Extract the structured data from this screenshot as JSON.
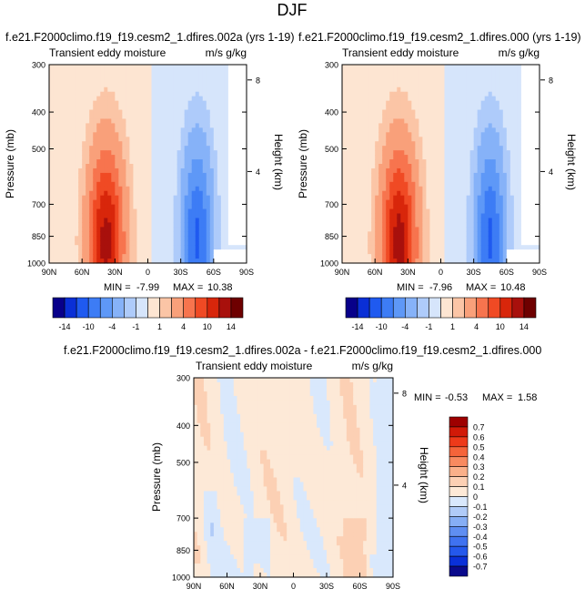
{
  "page_title": "DJF",
  "colors": {
    "palette": [
      "#08008a",
      "#0a2fd6",
      "#1f5af0",
      "#3d7cf5",
      "#5e98f7",
      "#86b2f8",
      "#aecbfa",
      "#d6e5fb",
      "#fde5d2",
      "#fbc5a6",
      "#f9a07a",
      "#f7744e",
      "#f04a24",
      "#d8260b",
      "#a8100c",
      "#6e0000"
    ],
    "diff_palette": [
      "#0a0a8c",
      "#0a30d8",
      "#2458ec",
      "#3f72f0",
      "#5f8ef2",
      "#86aef5",
      "#b0cbf8",
      "#d9e8fc",
      "#fde9d7",
      "#fcd0b4",
      "#fab08a",
      "#f88a60",
      "#f5643a",
      "#ee3a1a",
      "#d11a08",
      "#9e0000"
    ]
  },
  "chart_data": [
    {
      "type": "heatmap",
      "title": "f.e21.F2000climo.f19_f19.cesm2_1.dfires.002a (yrs 1-19)",
      "subtitle_left": "Transient eddy moisture",
      "subtitle_right": "m/s g/kg",
      "ylabel": "Pressure (mb)",
      "ylabel_right": "Height (km)",
      "x_ticks": [
        "90N",
        "60N",
        "30N",
        "0",
        "30S",
        "60S",
        "90S"
      ],
      "y_ticks": [
        "300",
        "400",
        "500",
        "700",
        "850",
        "1000"
      ],
      "height_ticks": [
        "8",
        "4"
      ],
      "stats": {
        "min_label": "MIN =",
        "min": "-7.99",
        "max_label": "MAX =",
        "max": "10.38"
      },
      "colorbar_labels": [
        "-14",
        "-10",
        "-4",
        "-1",
        "1",
        "4",
        "10",
        "14"
      ],
      "blobs": [
        {
          "lat": 38,
          "p": 880,
          "value": 10.38
        },
        {
          "lat": -45,
          "p": 860,
          "value": -7.99
        }
      ]
    },
    {
      "type": "heatmap",
      "title": "f.e21.F2000climo.f19_f19.cesm2_1.dfires.000 (yrs 1-19)",
      "subtitle_left": "Transient eddy moisture",
      "subtitle_right": "m/s g/kg",
      "ylabel": "Pressure (mb)",
      "ylabel_right": "Height (km)",
      "x_ticks": [
        "90N",
        "60N",
        "30N",
        "0",
        "30S",
        "60S",
        "90S"
      ],
      "y_ticks": [
        "300",
        "400",
        "500",
        "700",
        "850",
        "1000"
      ],
      "height_ticks": [
        "8",
        "4"
      ],
      "stats": {
        "min_label": "MIN =",
        "min": "-7.96",
        "max_label": "MAX =",
        "max": "10.48"
      },
      "colorbar_labels": [
        "-14",
        "-10",
        "-4",
        "-1",
        "1",
        "4",
        "10",
        "14"
      ],
      "blobs": [
        {
          "lat": 38,
          "p": 880,
          "value": 10.48
        },
        {
          "lat": -45,
          "p": 860,
          "value": -7.96
        }
      ]
    },
    {
      "type": "heatmap",
      "title": "f.e21.F2000climo.f19_f19.cesm2_1.dfires.002a - f.e21.F2000climo.f19_f19.cesm2_1.dfires.000",
      "subtitle_left": "Transient eddy moisture",
      "subtitle_right": "m/s g/kg",
      "ylabel": "Pressure (mb)",
      "ylabel_right": "Height (km)",
      "x_ticks": [
        "90N",
        "60N",
        "30N",
        "0",
        "30S",
        "60S",
        "90S"
      ],
      "y_ticks": [
        "300",
        "400",
        "500",
        "700",
        "850",
        "1000"
      ],
      "height_ticks": [
        "8",
        "4"
      ],
      "stats": {
        "min_label": "MIN =",
        "min": "-0.53",
        "max_label": "MAX =",
        "max": "1.58"
      },
      "colorbar_labels": [
        "0.7",
        "0.6",
        "0.5",
        "0.4",
        "0.3",
        "0.2",
        "0.1",
        "0",
        "-0.1",
        "-0.2",
        "-0.3",
        "-0.4",
        "-0.5",
        "-0.6",
        "-0.7"
      ]
    }
  ]
}
